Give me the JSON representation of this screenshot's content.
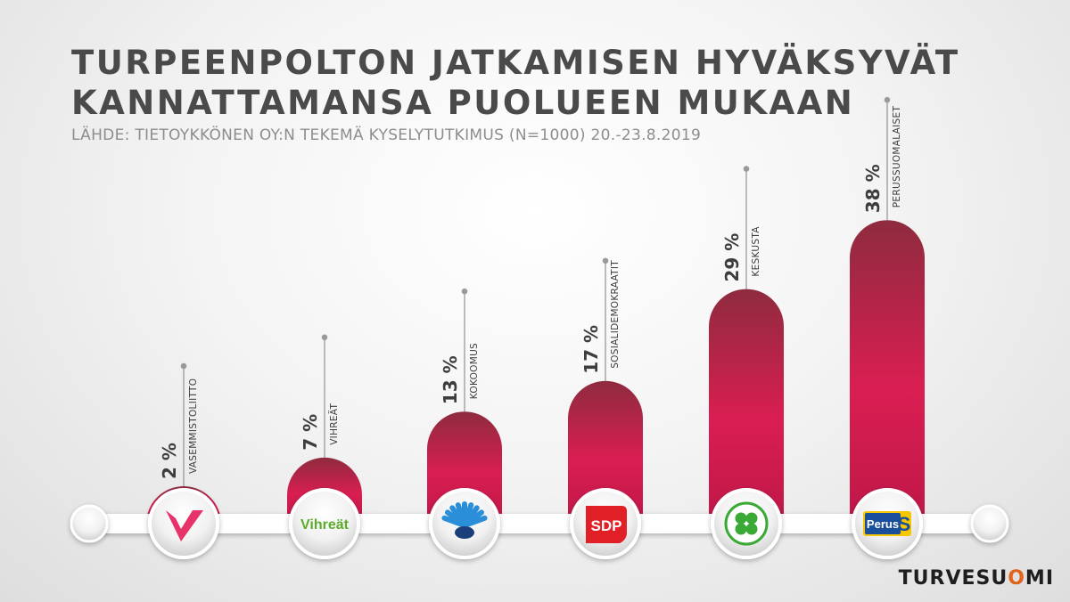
{
  "title_line1": "TURPEENPOLTON JATKAMISEN HYVÄKSYVÄT",
  "title_line2": "KANNATTAMANSA PUOLUEEN MUKAAN",
  "subtitle": "LÄHDE: TIETOYKKÖNEN OY:N TEKEMÄ KYSELYTUTKIMUS (N=1000) 20.-23.8.2019",
  "brand": {
    "main": "TURVESU",
    "accent": "O",
    "end": "MI"
  },
  "colors": {
    "bar_top": "#8e2b3e",
    "bar_mid": "#d91e52",
    "title": "#4a4a4a",
    "subtitle": "#8d8d8d",
    "brand_accent": "#e0641a"
  },
  "chart_data": {
    "type": "bar",
    "title": "TURPEENPOLTON JATKAMISEN HYVÄKSYVÄT KANNATTAMANSA PUOLUEEN MUKAAN",
    "subtitle": "LÄHDE: TIETOYKKÖNEN OY:N TEKEMÄ KYSELYTUTKIMUS (N=1000) 20.-23.8.2019",
    "categories": [
      "VASEMMISTOLIITTO",
      "VIHREÄT",
      "KOKOOMUS",
      "SOSIALIDEMOKRAATIT",
      "KESKUSTA",
      "PERUSSUOMALAISET"
    ],
    "values": [
      2,
      7,
      13,
      17,
      29,
      38
    ],
    "value_labels": [
      "2 %",
      "7 %",
      "13 %",
      "17 %",
      "29 %",
      "38 %"
    ],
    "logos": [
      {
        "icon": "vasemmistoliitto-v-logo",
        "text": "",
        "color": "#e8336a"
      },
      {
        "icon": "vihreat-logo",
        "text": "Vihreät",
        "color": "#5dab2b"
      },
      {
        "icon": "kokoomus-flower-logo",
        "text": "",
        "color": "#1d6fb8"
      },
      {
        "icon": "sdp-logo",
        "text": "SDP",
        "color": "#e11f26"
      },
      {
        "icon": "keskusta-clover-logo",
        "text": "",
        "color": "#3aa935"
      },
      {
        "icon": "perussuomalaiset-logo",
        "text": "Perus",
        "color": "#1a4f9c"
      }
    ],
    "ylim": [
      0,
      38
    ],
    "xlabel": "",
    "ylabel": "",
    "grid": false,
    "legend": "none"
  }
}
